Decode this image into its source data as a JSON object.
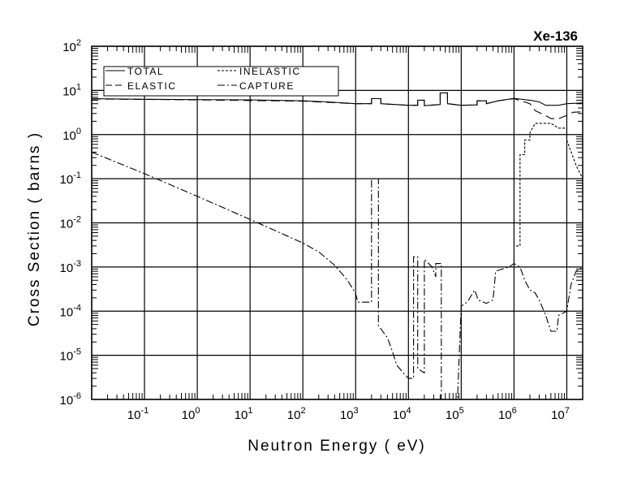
{
  "chart_data": {
    "type": "line",
    "title": "Xe-136",
    "xlabel": "Neutron Energy ( eV)",
    "ylabel": "Cross Section ( barns )",
    "xscale": "log",
    "yscale": "log",
    "xlim": [
      0.01,
      20000000
    ],
    "ylim": [
      1e-06,
      100
    ],
    "x_tick_exponents": [
      -1,
      0,
      1,
      2,
      3,
      4,
      5,
      6,
      7
    ],
    "y_tick_exponents": [
      -6,
      -5,
      -4,
      -3,
      -2,
      -1,
      0,
      1,
      2
    ],
    "tick_base": "10",
    "grid": true,
    "legend_position": "top-left",
    "series": [
      {
        "name": "TOTAL",
        "style": "solid",
        "points": [
          [
            0.01,
            6.5
          ],
          [
            0.1,
            6.3
          ],
          [
            1,
            6.2
          ],
          [
            10,
            6.1
          ],
          [
            100,
            5.8
          ],
          [
            300,
            5.5
          ],
          [
            1000,
            5.0
          ],
          [
            2000,
            5.0
          ],
          [
            2000,
            6.5
          ],
          [
            3000,
            6.5
          ],
          [
            3000,
            5.0
          ],
          [
            10000,
            4.6
          ],
          [
            15000,
            4.6
          ],
          [
            15000,
            6.0
          ],
          [
            20000,
            6.0
          ],
          [
            20000,
            4.5
          ],
          [
            40000,
            4.8
          ],
          [
            40000,
            8.8
          ],
          [
            55000,
            8.8
          ],
          [
            55000,
            5.0
          ],
          [
            100000,
            4.6
          ],
          [
            200000,
            4.7
          ],
          [
            200000,
            5.8
          ],
          [
            300000,
            5.8
          ],
          [
            300000,
            5.0
          ],
          [
            500000,
            5.8
          ],
          [
            1000000,
            6.6
          ],
          [
            2000000,
            6.0
          ],
          [
            3000000,
            5.5
          ],
          [
            4000000,
            4.6
          ],
          [
            7000000,
            4.6
          ],
          [
            10000000,
            5.0
          ],
          [
            20000000,
            5.2
          ]
        ]
      },
      {
        "name": "ELASTIC",
        "style": "long-dash",
        "points": [
          [
            0.01,
            6.4
          ],
          [
            1,
            6.1
          ],
          [
            100,
            5.7
          ],
          [
            1000,
            5.0
          ],
          [
            2000,
            5.0
          ],
          [
            2000,
            6.5
          ],
          [
            3000,
            6.5
          ],
          [
            3000,
            5.0
          ],
          [
            10000,
            4.6
          ],
          [
            15000,
            4.6
          ],
          [
            15000,
            6.0
          ],
          [
            20000,
            6.0
          ],
          [
            20000,
            4.5
          ],
          [
            40000,
            4.8
          ],
          [
            40000,
            8.8
          ],
          [
            55000,
            8.8
          ],
          [
            55000,
            5.0
          ],
          [
            100000,
            4.6
          ],
          [
            200000,
            4.7
          ],
          [
            200000,
            5.8
          ],
          [
            300000,
            5.8
          ],
          [
            300000,
            5.0
          ],
          [
            500000,
            5.8
          ],
          [
            1000000,
            6.5
          ],
          [
            2000000,
            5.0
          ],
          [
            2500000,
            3.5
          ],
          [
            4000000,
            2.7
          ],
          [
            5000000,
            2.3
          ],
          [
            7000000,
            2.3
          ],
          [
            10000000,
            2.7
          ],
          [
            13000000,
            3.2
          ],
          [
            20000000,
            3.3
          ]
        ]
      },
      {
        "name": "INELASTIC",
        "style": "short-dash",
        "points": [
          [
            1100000,
            0.003
          ],
          [
            1300000,
            0.003
          ],
          [
            1300000,
            0.35
          ],
          [
            1600000,
            0.35
          ],
          [
            1600000,
            0.75
          ],
          [
            2000000,
            0.75
          ],
          [
            2000000,
            1.1
          ],
          [
            2500000,
            1.8
          ],
          [
            5000000,
            1.8
          ],
          [
            7000000,
            1.4
          ],
          [
            10000000,
            1.4
          ],
          [
            10000000,
            0.75
          ],
          [
            15000000,
            0.2
          ],
          [
            20000000,
            0.1
          ]
        ]
      },
      {
        "name": "CAPTURE",
        "style": "dash-dot",
        "points": [
          [
            0.01,
            0.4
          ],
          [
            0.1,
            0.13
          ],
          [
            1,
            0.04
          ],
          [
            10,
            0.012
          ],
          [
            100,
            0.0035
          ],
          [
            200,
            0.0022
          ],
          [
            400,
            0.0011
          ],
          [
            700,
            0.0005
          ],
          [
            1000,
            0.00025
          ],
          [
            1100,
            0.00016
          ],
          [
            2000,
            0.00016
          ],
          [
            2000,
            0.1
          ],
          [
            2700,
            0.1
          ],
          [
            2700,
            4.7e-05
          ],
          [
            4000,
            2.5e-05
          ],
          [
            5000,
            1.2e-05
          ],
          [
            6000,
            6e-06
          ],
          [
            8000,
            4e-06
          ],
          [
            10000,
            3e-06
          ],
          [
            12500,
            3e-06
          ],
          [
            12500,
            0.0017
          ],
          [
            15000,
            0.0017
          ],
          [
            15000,
            5e-06
          ],
          [
            20000,
            4e-06
          ],
          [
            20000,
            0.0015
          ],
          [
            28000,
            0.001
          ],
          [
            33000,
            0.0006
          ],
          [
            33000,
            0.0012
          ],
          [
            42000,
            0.0012
          ],
          [
            42000,
            1e-06
          ],
          [
            85000,
            1e-06
          ],
          [
            100000,
            0.00013
          ],
          [
            130000,
            0.00016
          ],
          [
            180000,
            0.0003
          ],
          [
            210000,
            0.00018
          ],
          [
            300000,
            0.00015
          ],
          [
            400000,
            0.00018
          ],
          [
            450000,
            0.0008
          ],
          [
            600000,
            0.0009
          ],
          [
            800000,
            0.001
          ],
          [
            1000000,
            0.0012
          ],
          [
            1300000,
            0.001
          ],
          [
            1600000,
            0.0005
          ],
          [
            2000000,
            0.0003
          ],
          [
            2500000,
            0.00026
          ],
          [
            3000000,
            0.00018
          ],
          [
            4000000,
            8e-05
          ],
          [
            5000000,
            3.5e-05
          ],
          [
            6500000,
            3.5e-05
          ],
          [
            7000000,
            8e-05
          ],
          [
            10000000,
            0.0001
          ],
          [
            12000000,
            0.0004
          ],
          [
            15000000,
            0.0008
          ],
          [
            20000000,
            0.001
          ]
        ]
      }
    ]
  }
}
